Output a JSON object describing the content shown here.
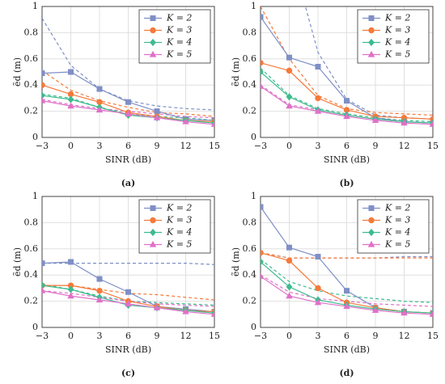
{
  "chart_data": [
    {
      "type": "line",
      "label": "(a)",
      "xlabel": "SINR (dB)",
      "ylabel": "ẽd (m)",
      "x": [
        -3,
        0,
        3,
        6,
        9,
        12,
        15
      ],
      "xlim": [
        -3,
        15
      ],
      "xticks": [
        {
          "value": -3,
          "label": "−3"
        },
        0,
        3,
        6,
        9,
        12,
        15
      ],
      "ylim": [
        0,
        1
      ],
      "yticks": [
        0,
        0.2,
        0.4,
        0.6,
        0.8,
        1
      ],
      "grid": true,
      "legend": "upper right",
      "series": [
        {
          "name": "K = 2",
          "color": "#7f8fc6",
          "marker": "square",
          "values": [
            0.49,
            0.5,
            0.37,
            0.27,
            0.2,
            0.14,
            0.13
          ]
        },
        {
          "name": "K = 3",
          "color": "#f5793a",
          "marker": "circle",
          "values": [
            0.4,
            0.33,
            0.27,
            0.19,
            0.16,
            0.13,
            0.12
          ]
        },
        {
          "name": "K = 4",
          "color": "#3dbb8e",
          "marker": "diamond",
          "values": [
            0.32,
            0.29,
            0.23,
            0.17,
            0.15,
            0.13,
            0.11
          ]
        },
        {
          "name": "K = 5",
          "color": "#e070c8",
          "marker": "triangle",
          "values": [
            0.28,
            0.24,
            0.21,
            0.18,
            0.15,
            0.12,
            0.1
          ]
        },
        {
          "color": "#7f8fc6",
          "dash": true,
          "values": [
            0.91,
            0.55,
            0.37,
            0.28,
            0.24,
            0.22,
            0.21
          ]
        },
        {
          "color": "#f5793a",
          "dash": true,
          "values": [
            0.51,
            0.36,
            0.28,
            0.23,
            0.19,
            0.18,
            0.16
          ]
        },
        {
          "color": "#3dbb8e",
          "dash": true,
          "values": [
            0.33,
            0.3,
            0.23,
            0.18,
            0.16,
            0.15,
            0.13
          ]
        },
        {
          "color": "#e070c8",
          "dash": true,
          "values": [
            0.29,
            0.25,
            0.22,
            0.2,
            0.18,
            0.16,
            0.15
          ]
        }
      ]
    },
    {
      "type": "line",
      "label": "(b)",
      "xlabel": "SINR (dB)",
      "ylabel": "ẽd (m)",
      "x": [
        -3,
        0,
        3,
        6,
        9,
        12,
        15
      ],
      "xlim": [
        -3,
        15
      ],
      "xticks": [
        {
          "value": -3,
          "label": "−3"
        },
        0,
        3,
        6,
        9,
        12,
        15
      ],
      "ylim": [
        0,
        1
      ],
      "yticks": [
        0,
        0.2,
        0.4,
        0.6,
        0.8,
        1
      ],
      "grid": true,
      "legend": "upper right",
      "series": [
        {
          "name": "K = 2",
          "color": "#7f8fc6",
          "marker": "square",
          "values": [
            0.92,
            0.61,
            0.54,
            0.28,
            0.15,
            0.12,
            0.11
          ]
        },
        {
          "name": "K = 3",
          "color": "#f5793a",
          "marker": "circle",
          "values": [
            0.57,
            0.51,
            0.3,
            0.21,
            0.16,
            0.15,
            0.14
          ]
        },
        {
          "name": "K = 4",
          "color": "#3dbb8e",
          "marker": "diamond",
          "values": [
            0.5,
            0.31,
            0.21,
            0.17,
            0.14,
            0.12,
            0.11
          ]
        },
        {
          "name": "K = 5",
          "color": "#e070c8",
          "marker": "triangle",
          "values": [
            0.39,
            0.24,
            0.2,
            0.16,
            0.13,
            0.11,
            0.1
          ]
        },
        {
          "color": "#7f8fc6",
          "dash": true,
          "values": [
            null,
            1.45,
            0.65,
            0.29,
            0.17,
            0.15,
            0.14
          ]
        },
        {
          "color": "#f5793a",
          "dash": true,
          "values": [
            1.0,
            0.6,
            0.32,
            0.22,
            0.19,
            0.18,
            0.17
          ]
        },
        {
          "color": "#3dbb8e",
          "dash": true,
          "values": [
            0.53,
            0.32,
            0.22,
            0.18,
            0.15,
            0.13,
            0.12
          ]
        },
        {
          "color": "#e070c8",
          "dash": true,
          "values": [
            0.4,
            0.25,
            0.21,
            0.17,
            0.14,
            0.12,
            0.11
          ]
        }
      ]
    },
    {
      "type": "line",
      "label": "(c)",
      "xlabel": "SINR (dB)",
      "ylabel": "ẽd (m)",
      "x": [
        -3,
        0,
        3,
        6,
        9,
        12,
        15
      ],
      "xlim": [
        -3,
        15
      ],
      "xticks": [
        {
          "value": -3,
          "label": "−3"
        },
        0,
        3,
        6,
        9,
        12,
        15
      ],
      "ylim": [
        0,
        1
      ],
      "yticks": [
        0,
        0.2,
        0.4,
        0.6,
        0.8,
        1
      ],
      "grid": true,
      "legend": "upper right",
      "series": [
        {
          "name": "K = 2",
          "color": "#7f8fc6",
          "marker": "square",
          "values": [
            0.49,
            0.5,
            0.37,
            0.27,
            0.16,
            0.14,
            0.12
          ]
        },
        {
          "name": "K = 3",
          "color": "#f5793a",
          "marker": "circle",
          "values": [
            0.32,
            0.32,
            0.28,
            0.2,
            0.16,
            0.13,
            0.12
          ]
        },
        {
          "name": "K = 4",
          "color": "#3dbb8e",
          "marker": "diamond",
          "values": [
            0.32,
            0.29,
            0.23,
            0.17,
            0.15,
            0.13,
            0.11
          ]
        },
        {
          "name": "K = 5",
          "color": "#e070c8",
          "marker": "triangle",
          "values": [
            0.28,
            0.24,
            0.21,
            0.18,
            0.15,
            0.12,
            0.1
          ]
        },
        {
          "color": "#7f8fc6",
          "dash": true,
          "values": [
            0.49,
            0.49,
            0.49,
            0.49,
            0.49,
            0.49,
            0.48
          ]
        },
        {
          "color": "#f5793a",
          "dash": true,
          "values": [
            0.32,
            0.32,
            0.29,
            0.26,
            0.25,
            0.23,
            0.21
          ]
        },
        {
          "color": "#3dbb8e",
          "dash": true,
          "values": [
            0.33,
            0.29,
            0.24,
            0.2,
            0.19,
            0.18,
            0.17
          ]
        },
        {
          "color": "#e070c8",
          "dash": true,
          "values": [
            0.28,
            0.26,
            0.23,
            0.2,
            0.18,
            0.17,
            0.16
          ]
        }
      ]
    },
    {
      "type": "line",
      "label": "(d)",
      "xlabel": "SINR (dB)",
      "ylabel": "ẽd (m)",
      "x": [
        -3,
        0,
        3,
        6,
        9,
        12,
        15
      ],
      "xlim": [
        -3,
        15
      ],
      "xticks": [
        {
          "value": -3,
          "label": "−3"
        },
        0,
        3,
        6,
        9,
        12,
        15
      ],
      "ylim": [
        0,
        1
      ],
      "yticks": [
        0,
        0.2,
        0.4,
        0.6,
        0.8,
        1
      ],
      "grid": true,
      "legend": "upper right",
      "series": [
        {
          "name": "K = 2",
          "color": "#7f8fc6",
          "marker": "square",
          "values": [
            0.92,
            0.61,
            0.54,
            0.28,
            0.15,
            0.12,
            0.11
          ]
        },
        {
          "name": "K = 3",
          "color": "#f5793a",
          "marker": "circle",
          "values": [
            0.57,
            0.51,
            0.3,
            0.19,
            0.15,
            0.12,
            0.11
          ]
        },
        {
          "name": "K = 4",
          "color": "#3dbb8e",
          "marker": "diamond",
          "values": [
            0.5,
            0.31,
            0.21,
            0.17,
            0.14,
            0.12,
            0.11
          ]
        },
        {
          "name": "K = 5",
          "color": "#e070c8",
          "marker": "triangle",
          "values": [
            0.39,
            0.24,
            0.19,
            0.16,
            0.13,
            0.11,
            0.1
          ]
        },
        {
          "color": "#7f8fc6",
          "dash": true,
          "values": [
            0.57,
            0.53,
            0.53,
            0.53,
            0.53,
            0.54,
            0.54
          ]
        },
        {
          "color": "#f5793a",
          "dash": true,
          "values": [
            0.57,
            0.53,
            0.53,
            0.53,
            0.53,
            0.53,
            0.53
          ]
        },
        {
          "color": "#3dbb8e",
          "dash": true,
          "values": [
            0.52,
            0.35,
            0.28,
            0.24,
            0.22,
            0.2,
            0.19
          ]
        },
        {
          "color": "#e070c8",
          "dash": true,
          "values": [
            0.4,
            0.27,
            0.22,
            0.2,
            0.18,
            0.17,
            0.16
          ]
        }
      ]
    }
  ]
}
